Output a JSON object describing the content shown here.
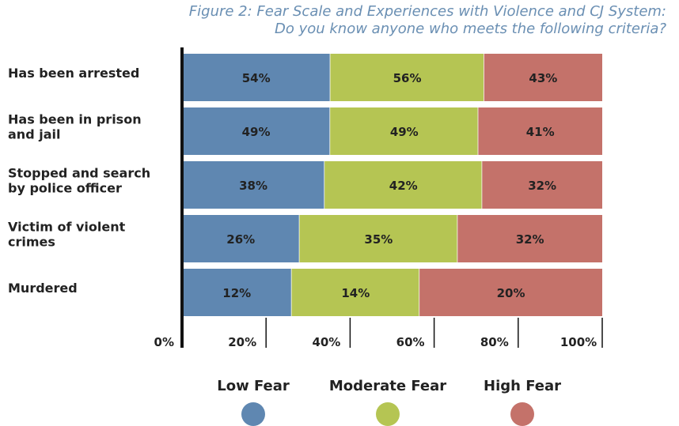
{
  "title": {
    "line1": "Figure 2: Fear Scale and Experiences with Violence and CJ System:",
    "line2": "Do you know anyone who meets the following criteria?"
  },
  "colors": {
    "low": "#5f87b1",
    "moderate": "#b5c553",
    "high": "#c4726a"
  },
  "chart_data": {
    "type": "bar",
    "orientation": "horizontal",
    "stacked": true,
    "title": "Figure 2: Fear Scale and Experiences with Violence and CJ System: Do you know anyone who meets the following criteria?",
    "categories": [
      [
        "Has been arrested"
      ],
      [
        "Has been in prison",
        "and jail"
      ],
      [
        "Stopped and search",
        "by police officer"
      ],
      [
        "Victim of violent",
        "crimes"
      ],
      [
        "Murdered"
      ]
    ],
    "series": [
      {
        "name": "Low Fear",
        "values": [
          54,
          49,
          38,
          26,
          12
        ],
        "labels": [
          "54%",
          "49%",
          "38%",
          "26%",
          "12%"
        ]
      },
      {
        "name": "Moderate Fear",
        "values": [
          56,
          49,
          42,
          35,
          14
        ],
        "labels": [
          "56%",
          "49%",
          "42%",
          "35%",
          "14%"
        ]
      },
      {
        "name": "High Fear",
        "values": [
          43,
          41,
          32,
          32,
          20
        ],
        "labels": [
          "43%",
          "41%",
          "32%",
          "32%",
          "20%"
        ]
      }
    ],
    "x_ticks": [
      "0%",
      "20%",
      "40%",
      "60%",
      "80%",
      "100%"
    ],
    "legend_position": "bottom"
  }
}
